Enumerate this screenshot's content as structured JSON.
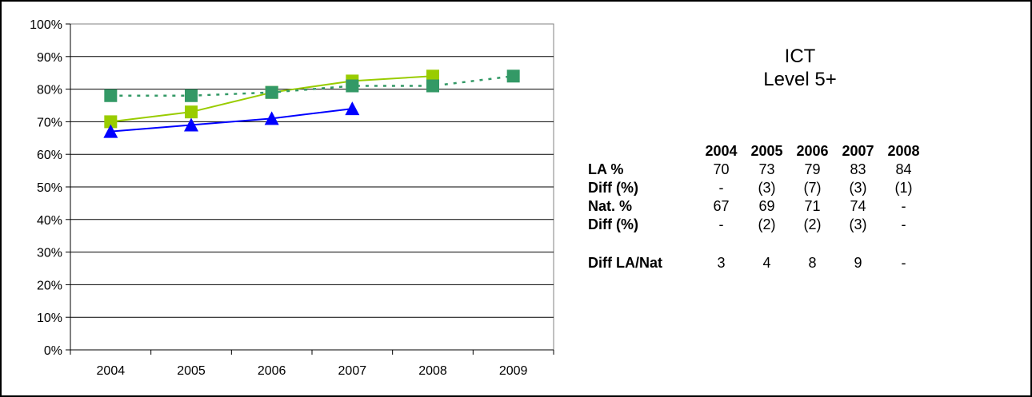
{
  "chart_data": {
    "type": "line",
    "x": [
      "2004",
      "2005",
      "2006",
      "2007",
      "2008",
      "2009"
    ],
    "yticks": [
      "0%",
      "10%",
      "20%",
      "30%",
      "40%",
      "50%",
      "60%",
      "70%",
      "80%",
      "90%",
      "100%"
    ],
    "ylim": [
      0,
      100
    ],
    "grid": true,
    "series": [
      {
        "values": [
          70,
          73,
          79,
          82.5,
          84,
          null
        ],
        "color": "#99cc00",
        "marker": "square",
        "line": "solid"
      },
      {
        "values": [
          67,
          69,
          71,
          74,
          null,
          null
        ],
        "color": "#0000ff",
        "marker": "triangle",
        "line": "solid"
      },
      {
        "values": [
          78,
          78,
          79,
          81,
          81,
          84
        ],
        "color": "#339966",
        "marker": "square",
        "line": "dotted"
      }
    ]
  },
  "title": {
    "line1": "ICT",
    "line2": "Level 5+"
  },
  "summary_table": {
    "headers": [
      "2004",
      "2005",
      "2006",
      "2007",
      "2008"
    ],
    "rows": [
      {
        "label": "LA %",
        "values": [
          "70",
          "73",
          "79",
          "83",
          "84"
        ]
      },
      {
        "label": "Diff (%)",
        "values": [
          "-",
          "(3)",
          "(7)",
          "(3)",
          "(1)"
        ]
      },
      {
        "label": "Nat. %",
        "values": [
          "67",
          "69",
          "71",
          "74",
          "-"
        ]
      },
      {
        "label": "Diff (%)",
        "values": [
          "-",
          "(2)",
          "(2)",
          "(3)",
          "-"
        ]
      },
      {
        "label": "Diff LA/Nat",
        "values": [
          "3",
          "4",
          "8",
          "9",
          "-"
        ]
      }
    ]
  }
}
